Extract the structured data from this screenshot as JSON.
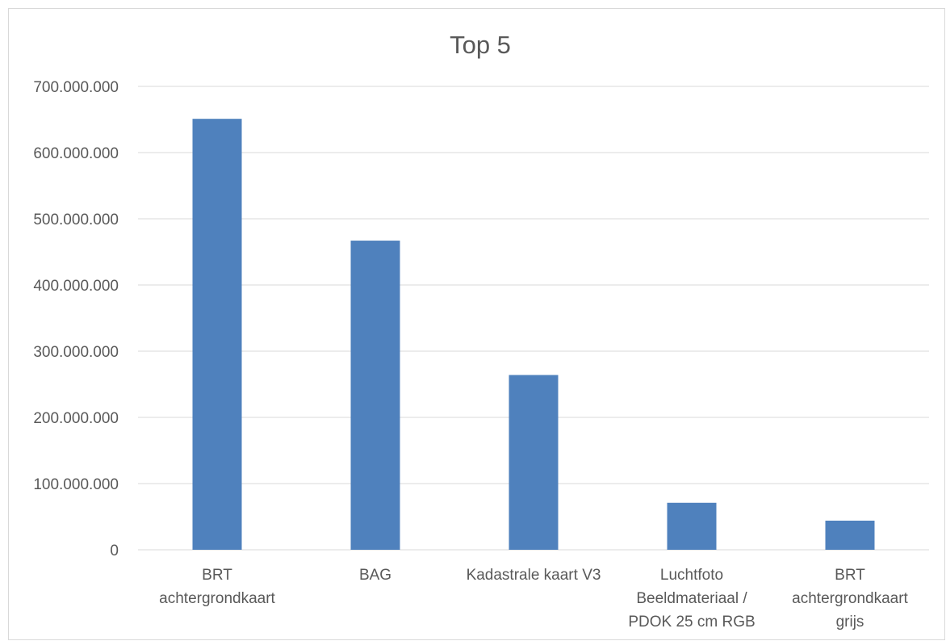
{
  "chart_data": {
    "type": "bar",
    "title": "Top 5",
    "xlabel": "",
    "ylabel": "",
    "categories": [
      [
        "BRT",
        "achtergrondkaart"
      ],
      [
        "BAG"
      ],
      [
        "Kadastrale kaart V3"
      ],
      [
        "Luchtfoto",
        "Beeldmateriaal /",
        "PDOK 25 cm RGB"
      ],
      [
        "BRT",
        "achtergrondkaart",
        "grijs"
      ]
    ],
    "values": [
      651000000,
      467000000,
      264000000,
      71000000,
      44000000
    ],
    "ylim": [
      0,
      700000000
    ],
    "yticks": [
      0,
      100000000,
      200000000,
      300000000,
      400000000,
      500000000,
      600000000,
      700000000
    ],
    "ytick_labels": [
      "0",
      "100.000.000",
      "200.000.000",
      "300.000.000",
      "400.000.000",
      "500.000.000",
      "600.000.000",
      "700.000.000"
    ],
    "grid": true,
    "legend": "none",
    "colors": {
      "bar": "#4f81bd",
      "grid": "#d9d9d9",
      "text": "#595959"
    }
  }
}
